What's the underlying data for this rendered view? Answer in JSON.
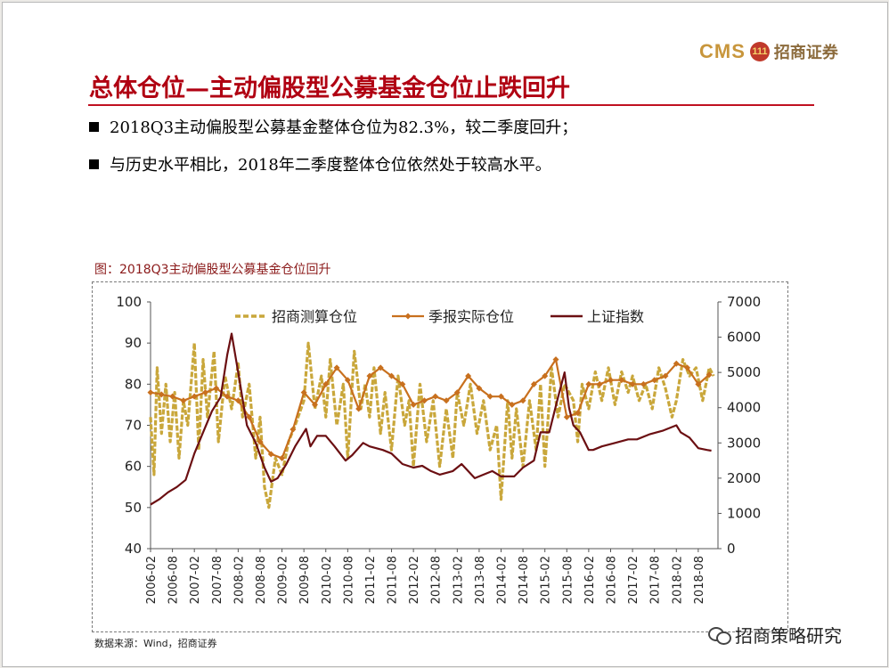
{
  "logo": {
    "cms": "CMS",
    "mark": "111",
    "cn": "招商证券"
  },
  "slide_title": "总体仓位—主动偏股型公募基金仓位止跌回升",
  "bullets": [
    "2018Q3主动偏股型公募基金整体仓位为82.3%，较二季度回升；",
    "与历史水平相比，2018年二季度整体仓位依然处于较高水平。"
  ],
  "figure_caption": "图：2018Q3主动偏股型公募基金仓位回升",
  "source": "数据来源：Wind，招商证券",
  "wechat_label": "招商策略研究",
  "colors": {
    "estimate": "#c9a73b",
    "quarterly": "#c8701e",
    "index": "#6b0f12",
    "title": "#b00012"
  },
  "chart_data": {
    "type": "line",
    "title": "2018Q3主动偏股型公募基金仓位回升",
    "x_ticks": [
      "2006-02",
      "2006-08",
      "2007-02",
      "2007-08",
      "2008-02",
      "2008-08",
      "2009-02",
      "2009-08",
      "2010-02",
      "2010-08",
      "2011-02",
      "2011-08",
      "2012-02",
      "2012-08",
      "2013-02",
      "2013-08",
      "2014-02",
      "2014-08",
      "2015-02",
      "2015-08",
      "2016-02",
      "2016-08",
      "2017-02",
      "2017-08",
      "2018-02",
      "2018-08"
    ],
    "y_left": {
      "label": "",
      "range": [
        40,
        100
      ],
      "ticks": [
        40,
        50,
        60,
        70,
        80,
        90,
        100
      ]
    },
    "y_right": {
      "label": "",
      "range": [
        0,
        7000
      ],
      "ticks": [
        0,
        1000,
        2000,
        3000,
        4000,
        5000,
        6000,
        7000
      ]
    },
    "legend": {
      "position": "top",
      "items": [
        "招商测算仓位",
        "季报实际仓位",
        "上证指数"
      ]
    },
    "series": [
      {
        "name": "季报实际仓位",
        "axis": "left",
        "style": "line-diamond",
        "x": [
          2006.0,
          2006.25,
          2006.5,
          2006.75,
          2007.0,
          2007.25,
          2007.5,
          2007.75,
          2008.0,
          2008.25,
          2008.5,
          2008.75,
          2009.0,
          2009.25,
          2009.5,
          2009.75,
          2010.0,
          2010.25,
          2010.5,
          2010.75,
          2011.0,
          2011.25,
          2011.5,
          2011.75,
          2012.0,
          2012.25,
          2012.5,
          2012.75,
          2013.0,
          2013.25,
          2013.5,
          2013.75,
          2014.0,
          2014.25,
          2014.5,
          2014.75,
          2015.0,
          2015.25,
          2015.5,
          2015.75,
          2016.0,
          2016.25,
          2016.5,
          2016.75,
          2017.0,
          2017.25,
          2017.5,
          2017.75,
          2018.0,
          2018.25,
          2018.5,
          2018.75
        ],
        "values": [
          78,
          77.5,
          77,
          76,
          77,
          78,
          79,
          77,
          76,
          72,
          66,
          63,
          62,
          69,
          78,
          75,
          80,
          84,
          81,
          74,
          82,
          84,
          82,
          80,
          75,
          76,
          77,
          76,
          78,
          82,
          79,
          77,
          77,
          75,
          76,
          80,
          82,
          86,
          72,
          73,
          80,
          80,
          81,
          81,
          80,
          80,
          81,
          82,
          85,
          84,
          80,
          82.3
        ]
      },
      {
        "name": "上证指数",
        "axis": "right",
        "style": "line",
        "x": [
          2006.0,
          2006.2,
          2006.4,
          2006.6,
          2006.8,
          2007.0,
          2007.2,
          2007.4,
          2007.6,
          2007.75,
          2007.85,
          2008.0,
          2008.2,
          2008.4,
          2008.6,
          2008.75,
          2008.9,
          2009.1,
          2009.3,
          2009.55,
          2009.65,
          2009.8,
          2010.0,
          2010.2,
          2010.45,
          2010.6,
          2010.85,
          2011.0,
          2011.3,
          2011.5,
          2011.75,
          2012.0,
          2012.2,
          2012.4,
          2012.6,
          2012.9,
          2013.1,
          2013.4,
          2013.6,
          2013.8,
          2014.0,
          2014.3,
          2014.5,
          2014.75,
          2014.9,
          2015.1,
          2015.3,
          2015.45,
          2015.55,
          2015.65,
          2015.8,
          2016.0,
          2016.1,
          2016.3,
          2016.6,
          2016.9,
          2017.1,
          2017.4,
          2017.7,
          2018.0,
          2018.1,
          2018.3,
          2018.5,
          2018.7,
          2018.8
        ],
        "values": [
          1250,
          1400,
          1600,
          1750,
          1950,
          2700,
          3300,
          3900,
          4300,
          5500,
          6100,
          5000,
          3500,
          3000,
          2300,
          1900,
          2000,
          2400,
          2900,
          3400,
          2900,
          3200,
          3200,
          2900,
          2500,
          2650,
          3000,
          2900,
          2800,
          2700,
          2400,
          2300,
          2350,
          2200,
          2100,
          2200,
          2400,
          2000,
          2100,
          2200,
          2050,
          2050,
          2300,
          2500,
          3300,
          3300,
          4300,
          5000,
          4000,
          3500,
          3300,
          2800,
          2800,
          2900,
          3000,
          3100,
          3100,
          3250,
          3350,
          3500,
          3300,
          3150,
          2850,
          2800,
          2780
        ]
      },
      {
        "name": "招商测算仓位",
        "axis": "left",
        "style": "dashed-volatile",
        "x": [
          2006.0,
          2006.08,
          2006.15,
          2006.25,
          2006.35,
          2006.45,
          2006.55,
          2006.65,
          2006.75,
          2006.85,
          2007.0,
          2007.1,
          2007.2,
          2007.3,
          2007.45,
          2007.55,
          2007.7,
          2007.85,
          2008.0,
          2008.1,
          2008.25,
          2008.4,
          2008.5,
          2008.6,
          2008.7,
          2008.85,
          2009.0,
          2009.15,
          2009.3,
          2009.5,
          2009.6,
          2009.75,
          2009.9,
          2010.0,
          2010.1,
          2010.25,
          2010.4,
          2010.5,
          2010.65,
          2010.8,
          2010.9,
          2011.0,
          2011.1,
          2011.25,
          2011.35,
          2011.5,
          2011.65,
          2011.8,
          2011.9,
          2012.0,
          2012.15,
          2012.3,
          2012.45,
          2012.6,
          2012.75,
          2012.9,
          2013.0,
          2013.15,
          2013.3,
          2013.45,
          2013.6,
          2013.75,
          2013.9,
          2014.0,
          2014.15,
          2014.25,
          2014.35,
          2014.5,
          2014.65,
          2014.8,
          2014.9,
          2015.0,
          2015.15,
          2015.3,
          2015.45,
          2015.55,
          2015.65,
          2015.75,
          2015.85,
          2016.0,
          2016.15,
          2016.3,
          2016.45,
          2016.6,
          2016.75,
          2016.9,
          2017.0,
          2017.15,
          2017.3,
          2017.45,
          2017.6,
          2017.75,
          2017.9,
          2018.0,
          2018.15,
          2018.3,
          2018.45,
          2018.6,
          2018.75,
          2018.85
        ],
        "values": [
          72,
          58,
          84,
          68,
          80,
          66,
          78,
          62,
          76,
          70,
          90,
          64,
          86,
          72,
          88,
          66,
          82,
          74,
          85,
          72,
          80,
          62,
          72,
          55,
          50,
          62,
          58,
          66,
          70,
          76,
          90,
          74,
          82,
          72,
          86,
          70,
          80,
          62,
          88,
          74,
          80,
          72,
          84,
          68,
          78,
          64,
          82,
          70,
          76,
          60,
          80,
          66,
          76,
          60,
          74,
          62,
          78,
          70,
          80,
          68,
          76,
          64,
          70,
          52,
          76,
          62,
          74,
          60,
          76,
          64,
          80,
          60,
          84,
          72,
          80,
          78,
          76,
          66,
          80,
          74,
          83,
          76,
          84,
          75,
          83,
          78,
          82,
          76,
          80,
          74,
          84,
          79,
          72,
          76,
          86,
          82,
          84,
          76,
          84,
          82
        ]
      }
    ]
  }
}
